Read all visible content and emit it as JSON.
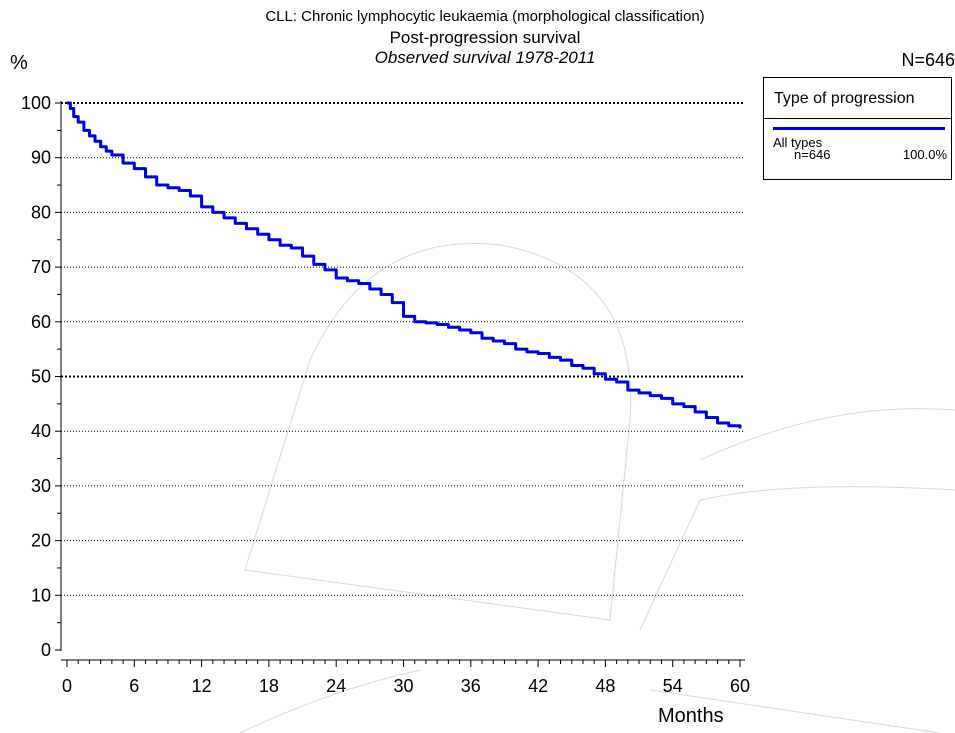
{
  "chart_data": {
    "type": "line",
    "title": "CLL: Chronic lymphocytic leukaemia (morphological classification)",
    "subtitle": "Post-progression survival",
    "subtitle2": "Observed survival 1978-2011",
    "ylabel": "%",
    "xlabel": "Months",
    "total_n": "N=646",
    "xlim": [
      0,
      60
    ],
    "ylim": [
      0,
      100
    ],
    "x_ticks": [
      "0",
      "6",
      "12",
      "18",
      "24",
      "30",
      "36",
      "42",
      "48",
      "54",
      "60"
    ],
    "y_ticks": [
      "0",
      "10",
      "20",
      "30",
      "40",
      "50",
      "60",
      "70",
      "80",
      "90",
      "100"
    ],
    "grid": "horizontal dotted",
    "legend": {
      "title": "Type of progression",
      "position": "top-right",
      "entries": [
        {
          "name": "All types",
          "n": "n=646",
          "percent": "100.0%",
          "color": "#0000e6"
        }
      ]
    },
    "series": [
      {
        "name": "All types",
        "color": "#0000e6",
        "x": [
          0,
          0.3,
          0.6,
          1,
          1.5,
          2,
          2.5,
          3,
          3.5,
          4,
          5,
          6,
          7,
          8,
          9,
          10,
          11,
          12,
          13,
          14,
          15,
          16,
          17,
          18,
          19,
          20,
          21,
          22,
          23,
          24,
          25,
          26,
          27,
          28,
          29,
          30,
          31,
          32,
          33,
          34,
          35,
          36,
          37,
          38,
          39,
          40,
          41,
          42,
          43,
          44,
          45,
          46,
          47,
          48,
          49,
          50,
          51,
          52,
          53,
          54,
          55,
          56,
          57,
          58,
          59,
          60
        ],
        "y": [
          100,
          99,
          97.5,
          96.5,
          95,
          94,
          93,
          92,
          91.2,
          90.5,
          89,
          88,
          86.5,
          85,
          84.5,
          84,
          83,
          81,
          80,
          79,
          78,
          77,
          76,
          75,
          74,
          73.5,
          72,
          70.5,
          69.5,
          68,
          67.5,
          67,
          66,
          65,
          63.5,
          61,
          60,
          59.8,
          59.5,
          59,
          58.5,
          58,
          57,
          56.5,
          56,
          55,
          54.5,
          54.2,
          53.5,
          53,
          52,
          51.5,
          50.5,
          49.5,
          49,
          47.5,
          47,
          46.5,
          46,
          45,
          44.5,
          43.5,
          42.5,
          41.5,
          41,
          40.5
        ]
      }
    ]
  }
}
